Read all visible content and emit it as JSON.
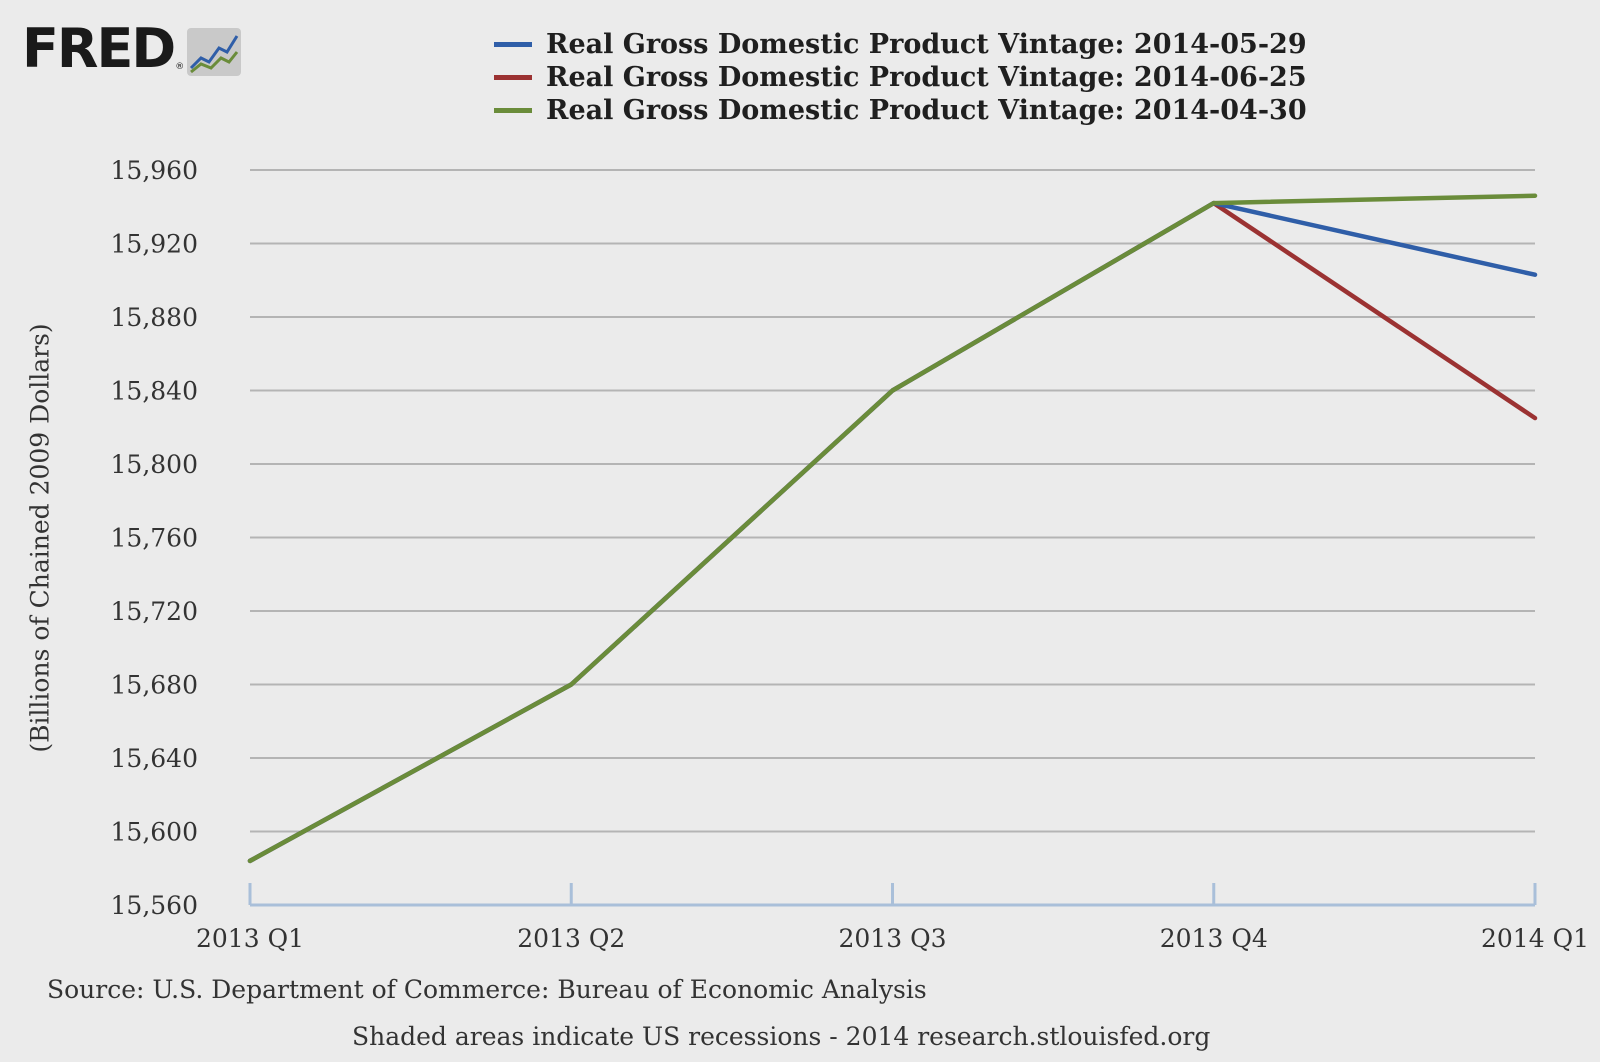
{
  "brand": {
    "logo_text": "FRED",
    "logo_mark": "®"
  },
  "colors": {
    "background": "#ebebeb",
    "grid": "#b4b4b4",
    "axis": "#a9bfd9",
    "vintage_0529": "#2f5ea8",
    "vintage_0625": "#9b3232",
    "vintage_0430": "#6a8c3a"
  },
  "footer": {
    "source": "Source: U.S. Department of Commerce: Bureau of Economic Analysis",
    "note": "Shaded areas indicate US recessions - 2014 research.stlouisfed.org"
  },
  "chart_data": {
    "type": "line",
    "title": "",
    "xlabel": "",
    "ylabel": "(Billions of Chained 2009 Dollars)",
    "categories": [
      "2013 Q1",
      "2013 Q2",
      "2013 Q3",
      "2013 Q4",
      "2014 Q1"
    ],
    "ylim": [
      15560,
      15960
    ],
    "yticks": [
      15560,
      15600,
      15640,
      15680,
      15720,
      15760,
      15800,
      15840,
      15880,
      15920,
      15960
    ],
    "ytick_labels": [
      "15,560",
      "15,600",
      "15,640",
      "15,680",
      "15,720",
      "15,760",
      "15,800",
      "15,840",
      "15,880",
      "15,920",
      "15,960"
    ],
    "grid": true,
    "legend_position": "top",
    "series": [
      {
        "name": "Real Gross Domestic Product Vintage: 2014-05-29",
        "color": "#2f5ea8",
        "values": [
          15584,
          15680,
          15840,
          15942,
          15903
        ]
      },
      {
        "name": "Real Gross Domestic Product Vintage: 2014-06-25",
        "color": "#9b3232",
        "values": [
          15584,
          15680,
          15840,
          15942,
          15825
        ]
      },
      {
        "name": "Real Gross Domestic Product Vintage: 2014-04-30",
        "color": "#6a8c3a",
        "values": [
          15584,
          15680,
          15840,
          15942,
          15946
        ]
      }
    ]
  }
}
